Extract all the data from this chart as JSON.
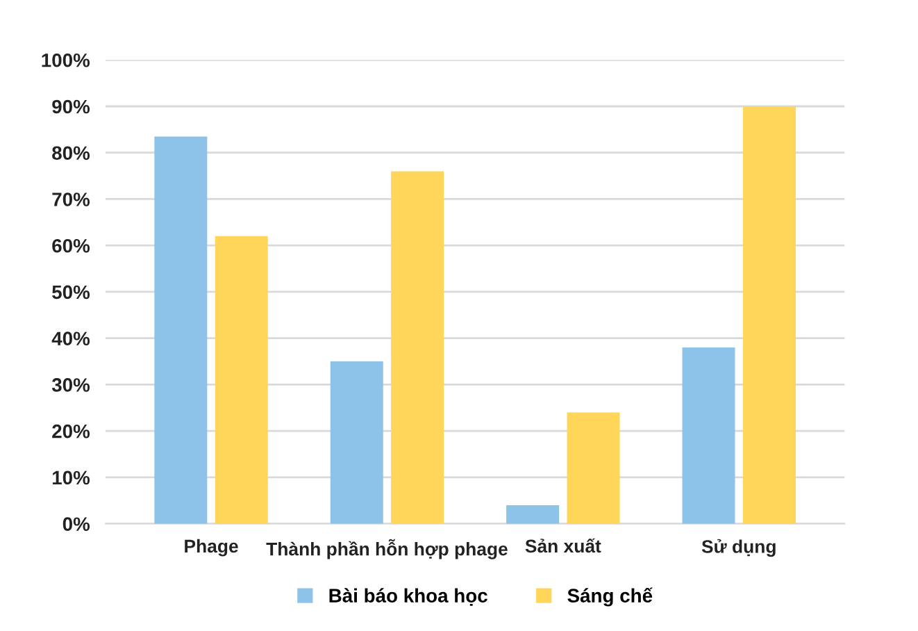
{
  "chart_data": {
    "type": "bar",
    "categories": [
      "Phage",
      "Thành phần hỗn hợp phage",
      "Sản xuất",
      "Sử dụng"
    ],
    "series": [
      {
        "name": "Bài báo khoa học",
        "color": "#8dc3e8",
        "values": [
          83.5,
          35,
          4,
          38
        ]
      },
      {
        "name": "Sáng chế",
        "color": "#ffd65a",
        "values": [
          62,
          76,
          24,
          90
        ]
      }
    ],
    "ylim": [
      0,
      100
    ],
    "yticks": [
      {
        "value": 0,
        "label": "0%"
      },
      {
        "value": 10,
        "label": "10%"
      },
      {
        "value": 20,
        "label": "20%"
      },
      {
        "value": 30,
        "label": "30%"
      },
      {
        "value": 40,
        "label": "40%"
      },
      {
        "value": 50,
        "label": "50%"
      },
      {
        "value": 60,
        "label": "60%"
      },
      {
        "value": 70,
        "label": "70%"
      },
      {
        "value": 80,
        "label": "80%"
      },
      {
        "value": 90,
        "label": "90%"
      },
      {
        "value": 100,
        "label": "100%"
      }
    ],
    "grid": "y",
    "legend": "bottom"
  }
}
